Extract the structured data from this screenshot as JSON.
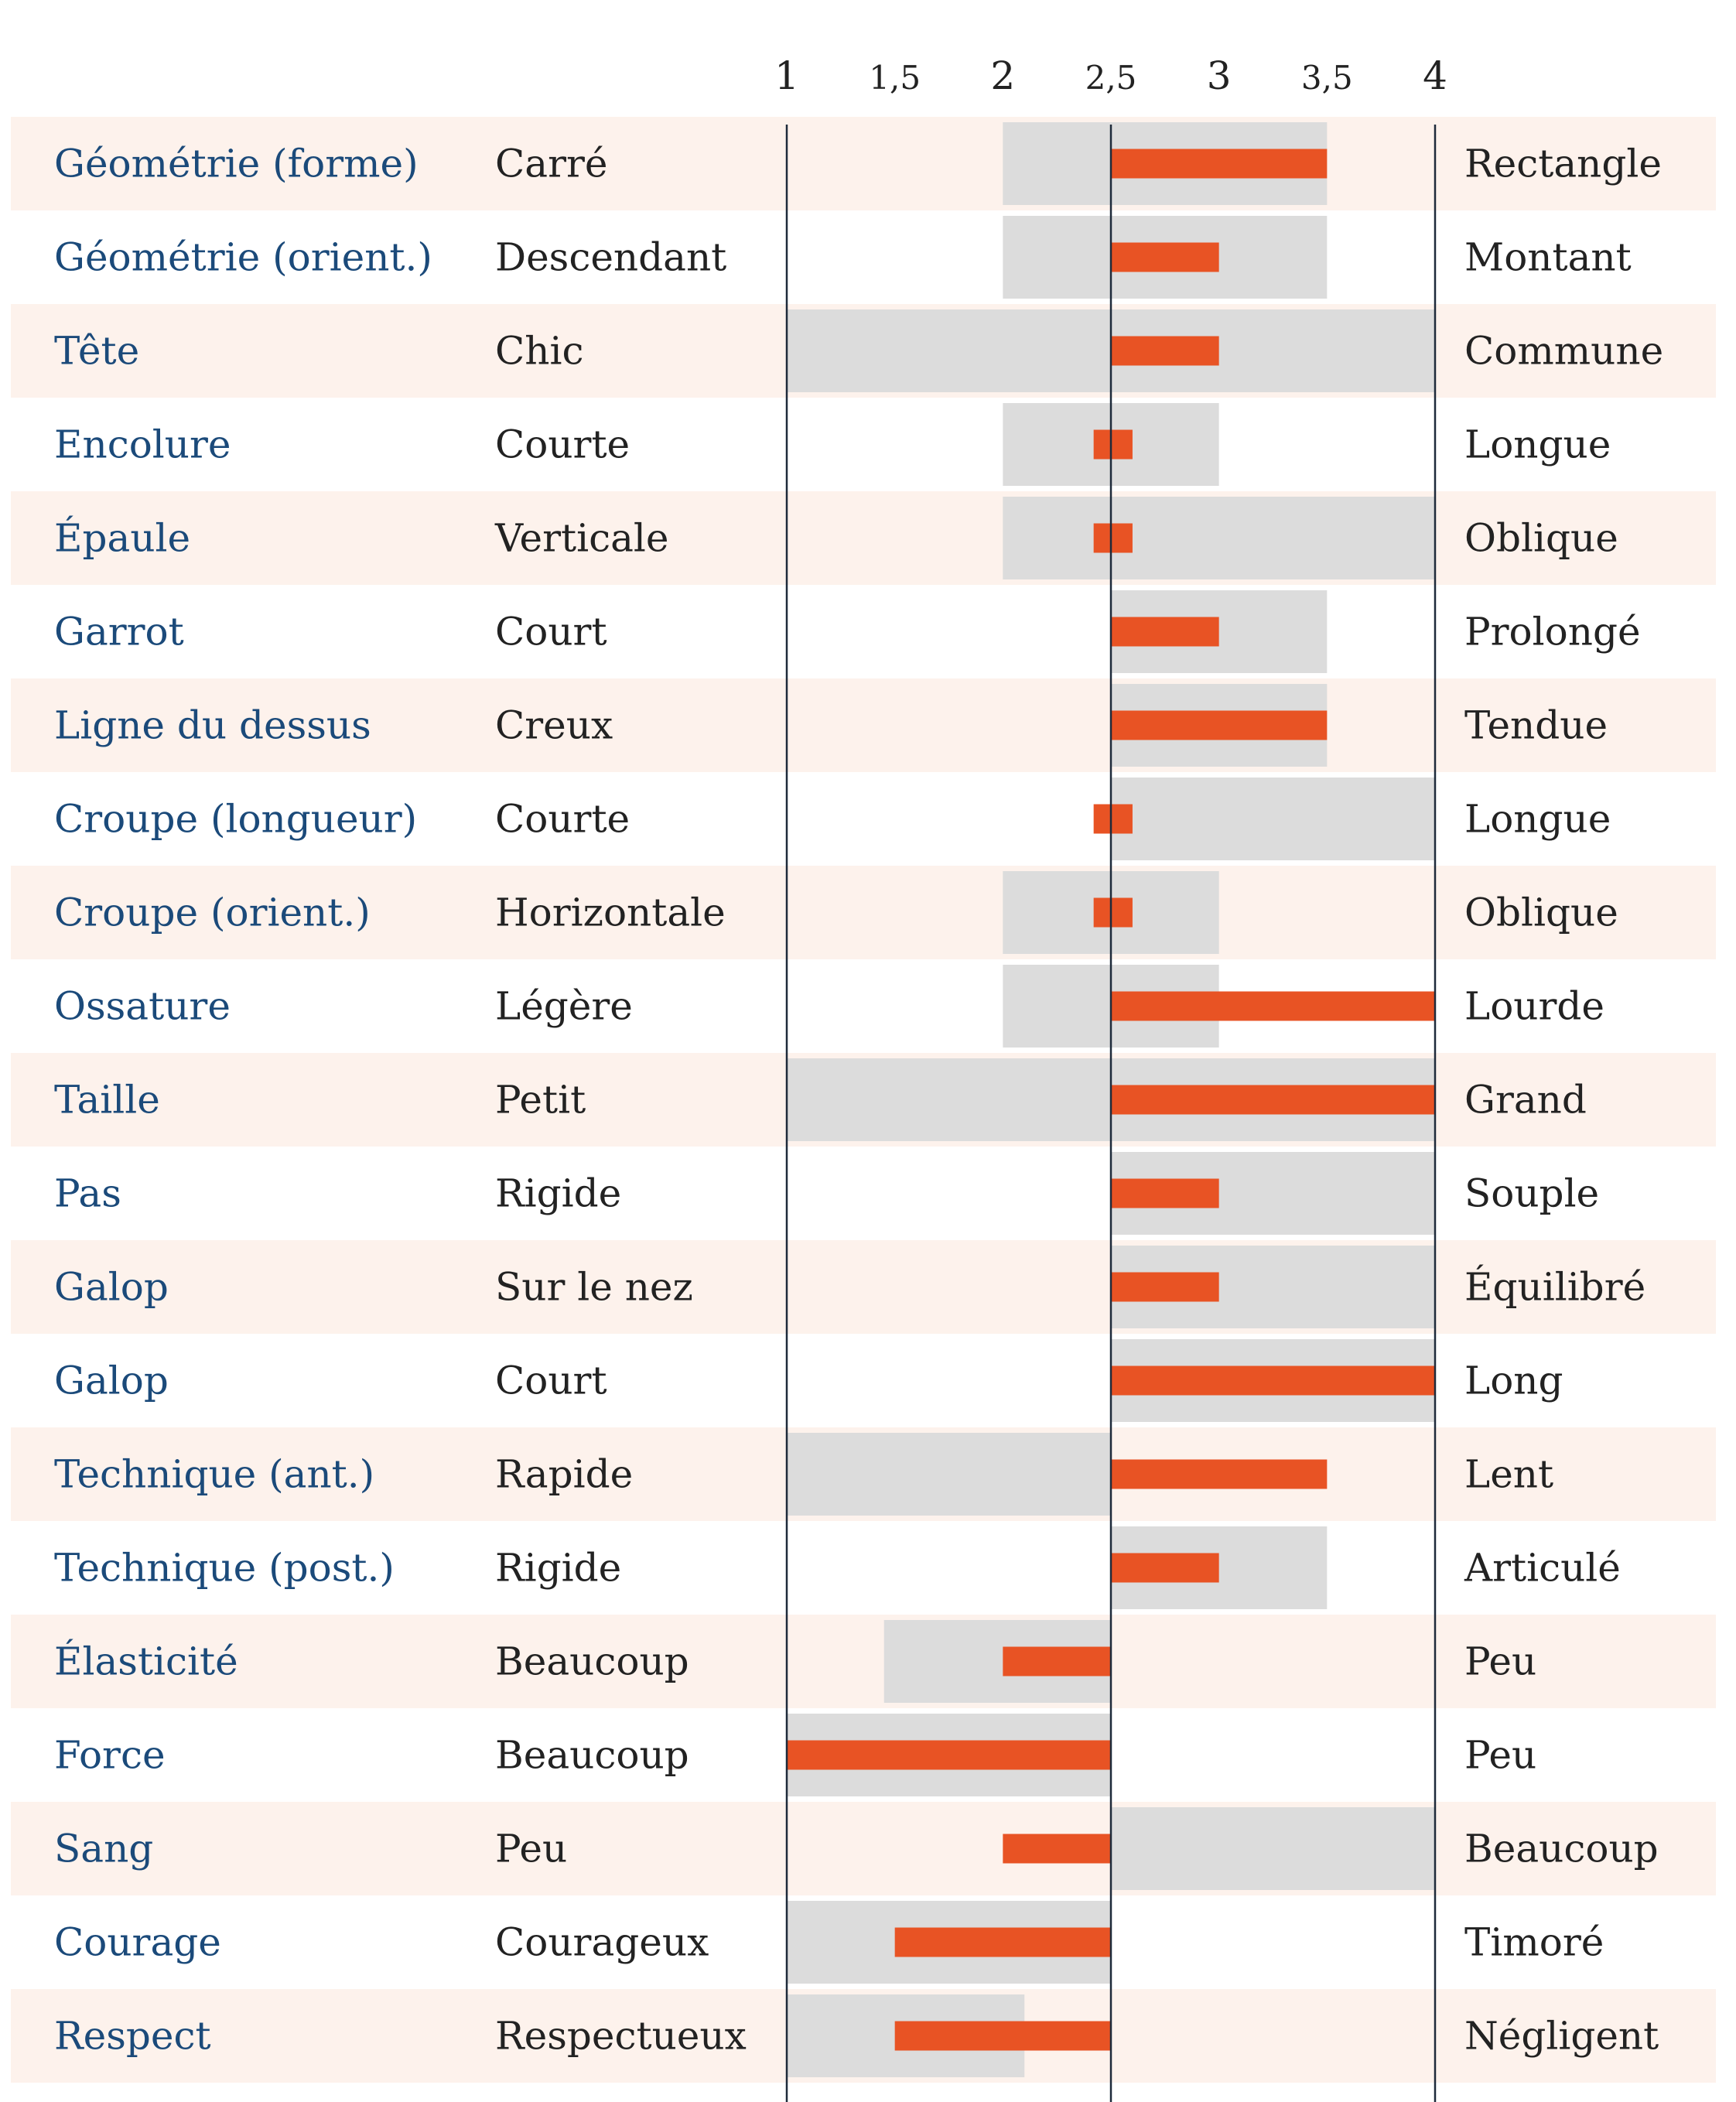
{
  "chart_data": {
    "type": "bar",
    "title": "",
    "xlabel": "",
    "ylabel": "",
    "xlim": [
      1,
      4
    ],
    "center": 2.5,
    "ticks": [
      "1",
      "1,5",
      "2",
      "2,5",
      "3",
      "3,5",
      "4"
    ],
    "tick_values": [
      1,
      1.5,
      2,
      2.5,
      3,
      3.5,
      4
    ],
    "colors": {
      "label": "#1b4a7a",
      "text": "#222222",
      "band": "#fdf2ec",
      "range": "#dcdcdc",
      "bar": "#e85324",
      "axis": "#1e2a3a"
    },
    "rows": [
      {
        "label": "Géométrie (forme)",
        "left": "Carré",
        "right": "Rectangle",
        "range": [
          2,
          3.5
        ],
        "bar": [
          2.5,
          3.5
        ]
      },
      {
        "label": "Géométrie (orient.)",
        "left": "Descendant",
        "right": "Montant",
        "range": [
          2,
          3.5
        ],
        "bar": [
          2.5,
          3
        ]
      },
      {
        "label": "Tête",
        "left": "Chic",
        "right": "Commune",
        "range": [
          1,
          4
        ],
        "bar": [
          2.5,
          3
        ]
      },
      {
        "label": "Encolure",
        "left": "Courte",
        "right": "Longue",
        "range": [
          2,
          3
        ],
        "bar": [
          2.42,
          2.6
        ]
      },
      {
        "label": "Épaule",
        "left": "Verticale",
        "right": "Oblique",
        "range": [
          2,
          4
        ],
        "bar": [
          2.42,
          2.6
        ]
      },
      {
        "label": "Garrot",
        "left": "Court",
        "right": "Prolongé",
        "range": [
          2.5,
          3.5
        ],
        "bar": [
          2.5,
          3
        ]
      },
      {
        "label": "Ligne du dessus",
        "left": "Creux",
        "right": "Tendue",
        "range": [
          2.5,
          3.5
        ],
        "bar": [
          2.5,
          3.5
        ]
      },
      {
        "label": "Croupe (longueur)",
        "left": "Courte",
        "right": "Longue",
        "range": [
          2.5,
          4
        ],
        "bar": [
          2.42,
          2.6
        ]
      },
      {
        "label": "Croupe (orient.)",
        "left": "Horizontale",
        "right": "Oblique",
        "range": [
          2,
          3
        ],
        "bar": [
          2.42,
          2.6
        ]
      },
      {
        "label": "Ossature",
        "left": "Légère",
        "right": "Lourde",
        "range": [
          2,
          3
        ],
        "bar": [
          2.5,
          4
        ]
      },
      {
        "label": "Taille",
        "left": "Petit",
        "right": "Grand",
        "range": [
          1,
          4
        ],
        "bar": [
          2.5,
          4
        ]
      },
      {
        "label": "Pas",
        "left": "Rigide",
        "right": "Souple",
        "range": [
          2.5,
          4
        ],
        "bar": [
          2.5,
          3
        ]
      },
      {
        "label": "Galop",
        "left": "Sur le nez",
        "right": "Équilibré",
        "range": [
          2.5,
          4
        ],
        "bar": [
          2.5,
          3
        ]
      },
      {
        "label": "Galop",
        "left": "Court",
        "right": "Long",
        "range": [
          2.5,
          4
        ],
        "bar": [
          2.5,
          4
        ]
      },
      {
        "label": "Technique (ant.)",
        "left": "Rapide",
        "right": "Lent",
        "range": [
          1,
          2.5
        ],
        "bar": [
          2.5,
          3.5
        ]
      },
      {
        "label": "Technique (post.)",
        "left": "Rigide",
        "right": "Articulé",
        "range": [
          2.5,
          3.5
        ],
        "bar": [
          2.5,
          3
        ]
      },
      {
        "label": "Élasticité",
        "left": "Beaucoup",
        "right": "Peu",
        "range": [
          1.45,
          2.5
        ],
        "bar": [
          2,
          2.5
        ]
      },
      {
        "label": "Force",
        "left": "Beaucoup",
        "right": "Peu",
        "range": [
          1,
          2.5
        ],
        "bar": [
          1,
          2.5
        ]
      },
      {
        "label": "Sang",
        "left": "Peu",
        "right": "Beaucoup",
        "range": [
          2.5,
          4
        ],
        "bar": [
          2,
          2.5
        ]
      },
      {
        "label": "Courage",
        "left": "Courageux",
        "right": "Timoré",
        "range": [
          1,
          2.5
        ],
        "bar": [
          1.5,
          2.5
        ]
      },
      {
        "label": "Respect",
        "left": "Respectueux",
        "right": "Négligent",
        "range": [
          1,
          2.1
        ],
        "bar": [
          1.5,
          2.5
        ]
      }
    ]
  }
}
